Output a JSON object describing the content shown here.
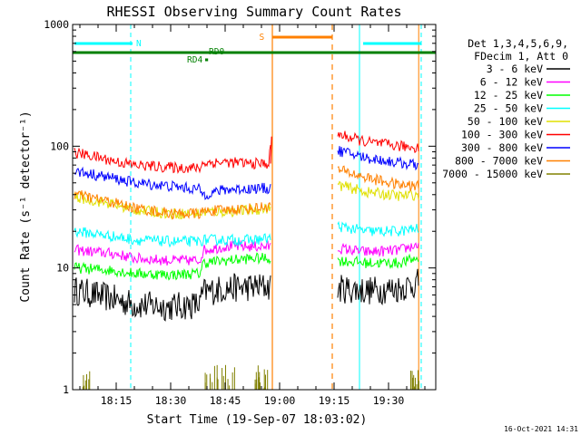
{
  "chart_data": {
    "type": "line",
    "title": "RHESSI Observing Summary Count Rates",
    "xlabel": "Start Time (19-Sep-07 18:03:02)",
    "ylabel": "Count Rate (s⁻¹ detector⁻¹)",
    "x_unit": "minutes after 18:03:02",
    "xlim": [
      0,
      100
    ],
    "ylim": [
      1,
      1000
    ],
    "y_scale": "log",
    "x_ticks": [
      {
        "label": "18:15",
        "value": 12
      },
      {
        "label": "18:30",
        "value": 27
      },
      {
        "label": "18:45",
        "value": 42
      },
      {
        "label": "19:00",
        "value": 57
      },
      {
        "label": "19:15",
        "value": 72
      },
      {
        "label": "19:30",
        "value": 87
      }
    ],
    "y_ticks": [
      "1",
      "10",
      "100",
      "1000"
    ],
    "legend_header": [
      "Det 1,3,4,5,6,9,",
      "FDecim 1, Att 0"
    ],
    "legend_position": "right",
    "footer_date": "16-Oct-2021 14:31",
    "series": [
      {
        "name": "3 - 6 keV",
        "color": "#000000",
        "points": [
          [
            1,
            6.5
          ],
          [
            12,
            5.5
          ],
          [
            17,
            5.0
          ],
          [
            27,
            4.8
          ],
          [
            35,
            5.0
          ],
          [
            36,
            6.3
          ],
          [
            42,
            6.8
          ],
          [
            50,
            7.0
          ],
          [
            54,
            7.0
          ],
          [
            73,
            6.8
          ],
          [
            81,
            6.5
          ],
          [
            90,
            6.8
          ],
          [
            95,
            7.5
          ]
        ]
      },
      {
        "name": "6 - 12 keV",
        "color": "#ff00ff",
        "points": [
          [
            1,
            14
          ],
          [
            12,
            13
          ],
          [
            17,
            12
          ],
          [
            27,
            11.5
          ],
          [
            35,
            11.5
          ],
          [
            36,
            14
          ],
          [
            42,
            15
          ],
          [
            50,
            15
          ],
          [
            54,
            15
          ],
          [
            73,
            14.5
          ],
          [
            81,
            13.5
          ],
          [
            90,
            14
          ],
          [
            95,
            15.5
          ]
        ]
      },
      {
        "name": "12 - 25 keV",
        "color": "#00ff00",
        "points": [
          [
            1,
            10
          ],
          [
            12,
            9.5
          ],
          [
            17,
            9
          ],
          [
            27,
            8.8
          ],
          [
            35,
            9
          ],
          [
            36,
            11
          ],
          [
            42,
            11.5
          ],
          [
            50,
            12
          ],
          [
            54,
            12
          ],
          [
            73,
            11.5
          ],
          [
            81,
            11
          ],
          [
            90,
            11
          ],
          [
            95,
            12
          ]
        ]
      },
      {
        "name": "25 - 50 keV",
        "color": "#00ffff",
        "points": [
          [
            1,
            20
          ],
          [
            12,
            18
          ],
          [
            17,
            17
          ],
          [
            27,
            16.5
          ],
          [
            35,
            16.5
          ],
          [
            36,
            17
          ],
          [
            42,
            17
          ],
          [
            50,
            17
          ],
          [
            54,
            17.5
          ],
          [
            73,
            22
          ],
          [
            81,
            20
          ],
          [
            90,
            20
          ],
          [
            95,
            21
          ]
        ]
      },
      {
        "name": "50 - 100 keV",
        "color": "#e0e000",
        "points": [
          [
            1,
            38
          ],
          [
            12,
            33
          ],
          [
            17,
            30
          ],
          [
            27,
            28
          ],
          [
            35,
            28
          ],
          [
            36,
            29
          ],
          [
            42,
            29
          ],
          [
            50,
            30
          ],
          [
            54,
            31
          ],
          [
            73,
            48
          ],
          [
            81,
            42
          ],
          [
            90,
            39
          ],
          [
            95,
            40
          ]
        ]
      },
      {
        "name": "100 - 300 keV",
        "color": "#ff0000",
        "points": [
          [
            1,
            88
          ],
          [
            12,
            75
          ],
          [
            17,
            70
          ],
          [
            27,
            67
          ],
          [
            35,
            66
          ],
          [
            36,
            73
          ],
          [
            42,
            74
          ],
          [
            50,
            72
          ],
          [
            54,
            72
          ],
          [
            55,
            120
          ],
          [
            73,
            125
          ],
          [
            81,
            108
          ],
          [
            90,
            100
          ],
          [
            95,
            98
          ]
        ]
      },
      {
        "name": "300 - 800 keV",
        "color": "#0000ff",
        "points": [
          [
            1,
            62
          ],
          [
            12,
            54
          ],
          [
            17,
            50
          ],
          [
            27,
            47
          ],
          [
            35,
            44
          ],
          [
            36,
            40
          ],
          [
            42,
            44
          ],
          [
            50,
            45
          ],
          [
            54,
            45
          ],
          [
            73,
            92
          ],
          [
            81,
            80
          ],
          [
            90,
            73
          ],
          [
            95,
            70
          ]
        ]
      },
      {
        "name": "800 - 7000 keV",
        "color": "#ff8000",
        "points": [
          [
            1,
            40
          ],
          [
            12,
            34
          ],
          [
            17,
            31
          ],
          [
            27,
            28
          ],
          [
            35,
            28
          ],
          [
            36,
            29
          ],
          [
            42,
            30
          ],
          [
            50,
            31
          ],
          [
            54,
            32
          ],
          [
            73,
            64
          ],
          [
            81,
            55
          ],
          [
            90,
            48
          ],
          [
            95,
            47
          ]
        ]
      },
      {
        "name": "7000 - 15000 keV",
        "color": "#808000",
        "points": []
      }
    ],
    "annotations": [
      {
        "text": "N",
        "color": "#00ffff"
      },
      {
        "text": "S",
        "color": "#ff8000"
      },
      {
        "text": "RD0",
        "color": "#008000"
      },
      {
        "text": "RD4",
        "color": "#008000"
      }
    ]
  }
}
